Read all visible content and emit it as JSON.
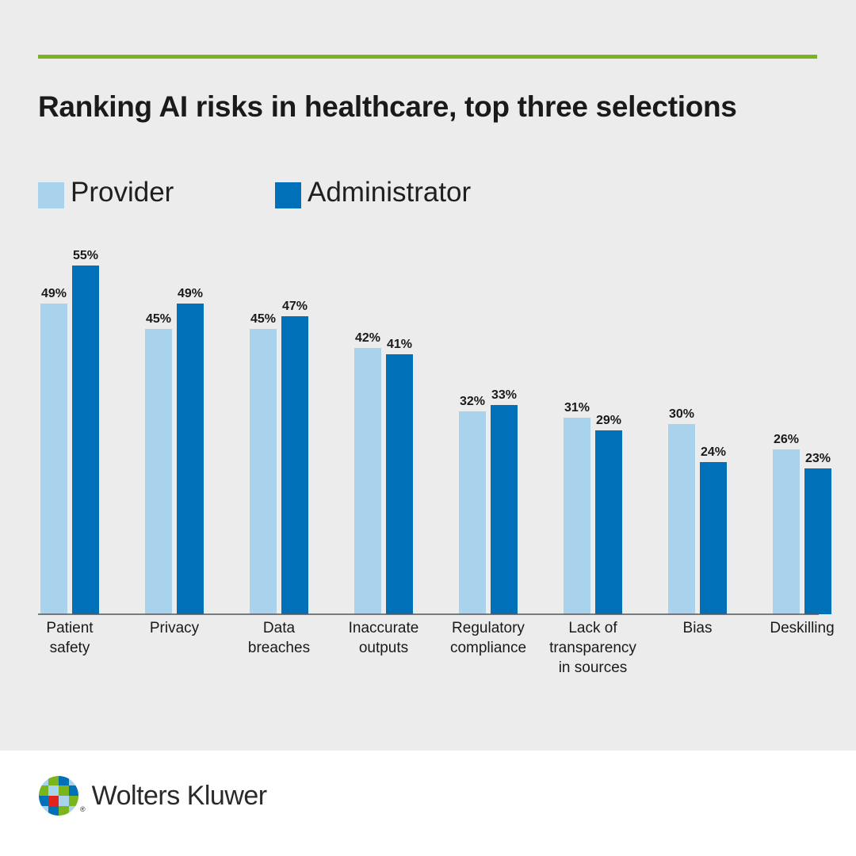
{
  "title": "Ranking AI risks in healthcare, top three selections",
  "colors": {
    "accent_rule": "#7ab51d",
    "provider": "#a9d3ec",
    "administrator": "#0070b8",
    "panel_bg": "#ececec"
  },
  "legend": [
    {
      "label": "Provider",
      "color": "#a9d3ec"
    },
    {
      "label": "Administrator",
      "color": "#0070b8"
    }
  ],
  "chart_data": {
    "type": "bar",
    "title": "Ranking AI risks in healthcare, top three selections",
    "categories": [
      [
        "Patient",
        "safety"
      ],
      [
        "Privacy"
      ],
      [
        "Data",
        "breaches"
      ],
      [
        "Inaccurate",
        "outputs"
      ],
      [
        "Regulatory",
        "compliance"
      ],
      [
        "Lack of",
        "transparency",
        "in sources"
      ],
      [
        "Bias"
      ],
      [
        "Deskilling"
      ]
    ],
    "series": [
      {
        "name": "Provider",
        "color": "#a9d3ec",
        "values": [
          49,
          45,
          45,
          42,
          32,
          31,
          30,
          26
        ],
        "labels": [
          "49%",
          "45%",
          "45%",
          "42%",
          "32%",
          "31%",
          "30%",
          "26%"
        ]
      },
      {
        "name": "Administrator",
        "color": "#0070b8",
        "values": [
          55,
          49,
          47,
          41,
          33,
          29,
          24,
          23
        ],
        "labels": [
          "55%",
          "49%",
          "47%",
          "41%",
          "33%",
          "29%",
          "24%",
          "23%"
        ]
      }
    ],
    "ylim": [
      0,
      60
    ],
    "grid": false,
    "legend_position": "top-left"
  },
  "footer": {
    "brand": "Wolters Kluwer",
    "registered_mark": "®"
  }
}
